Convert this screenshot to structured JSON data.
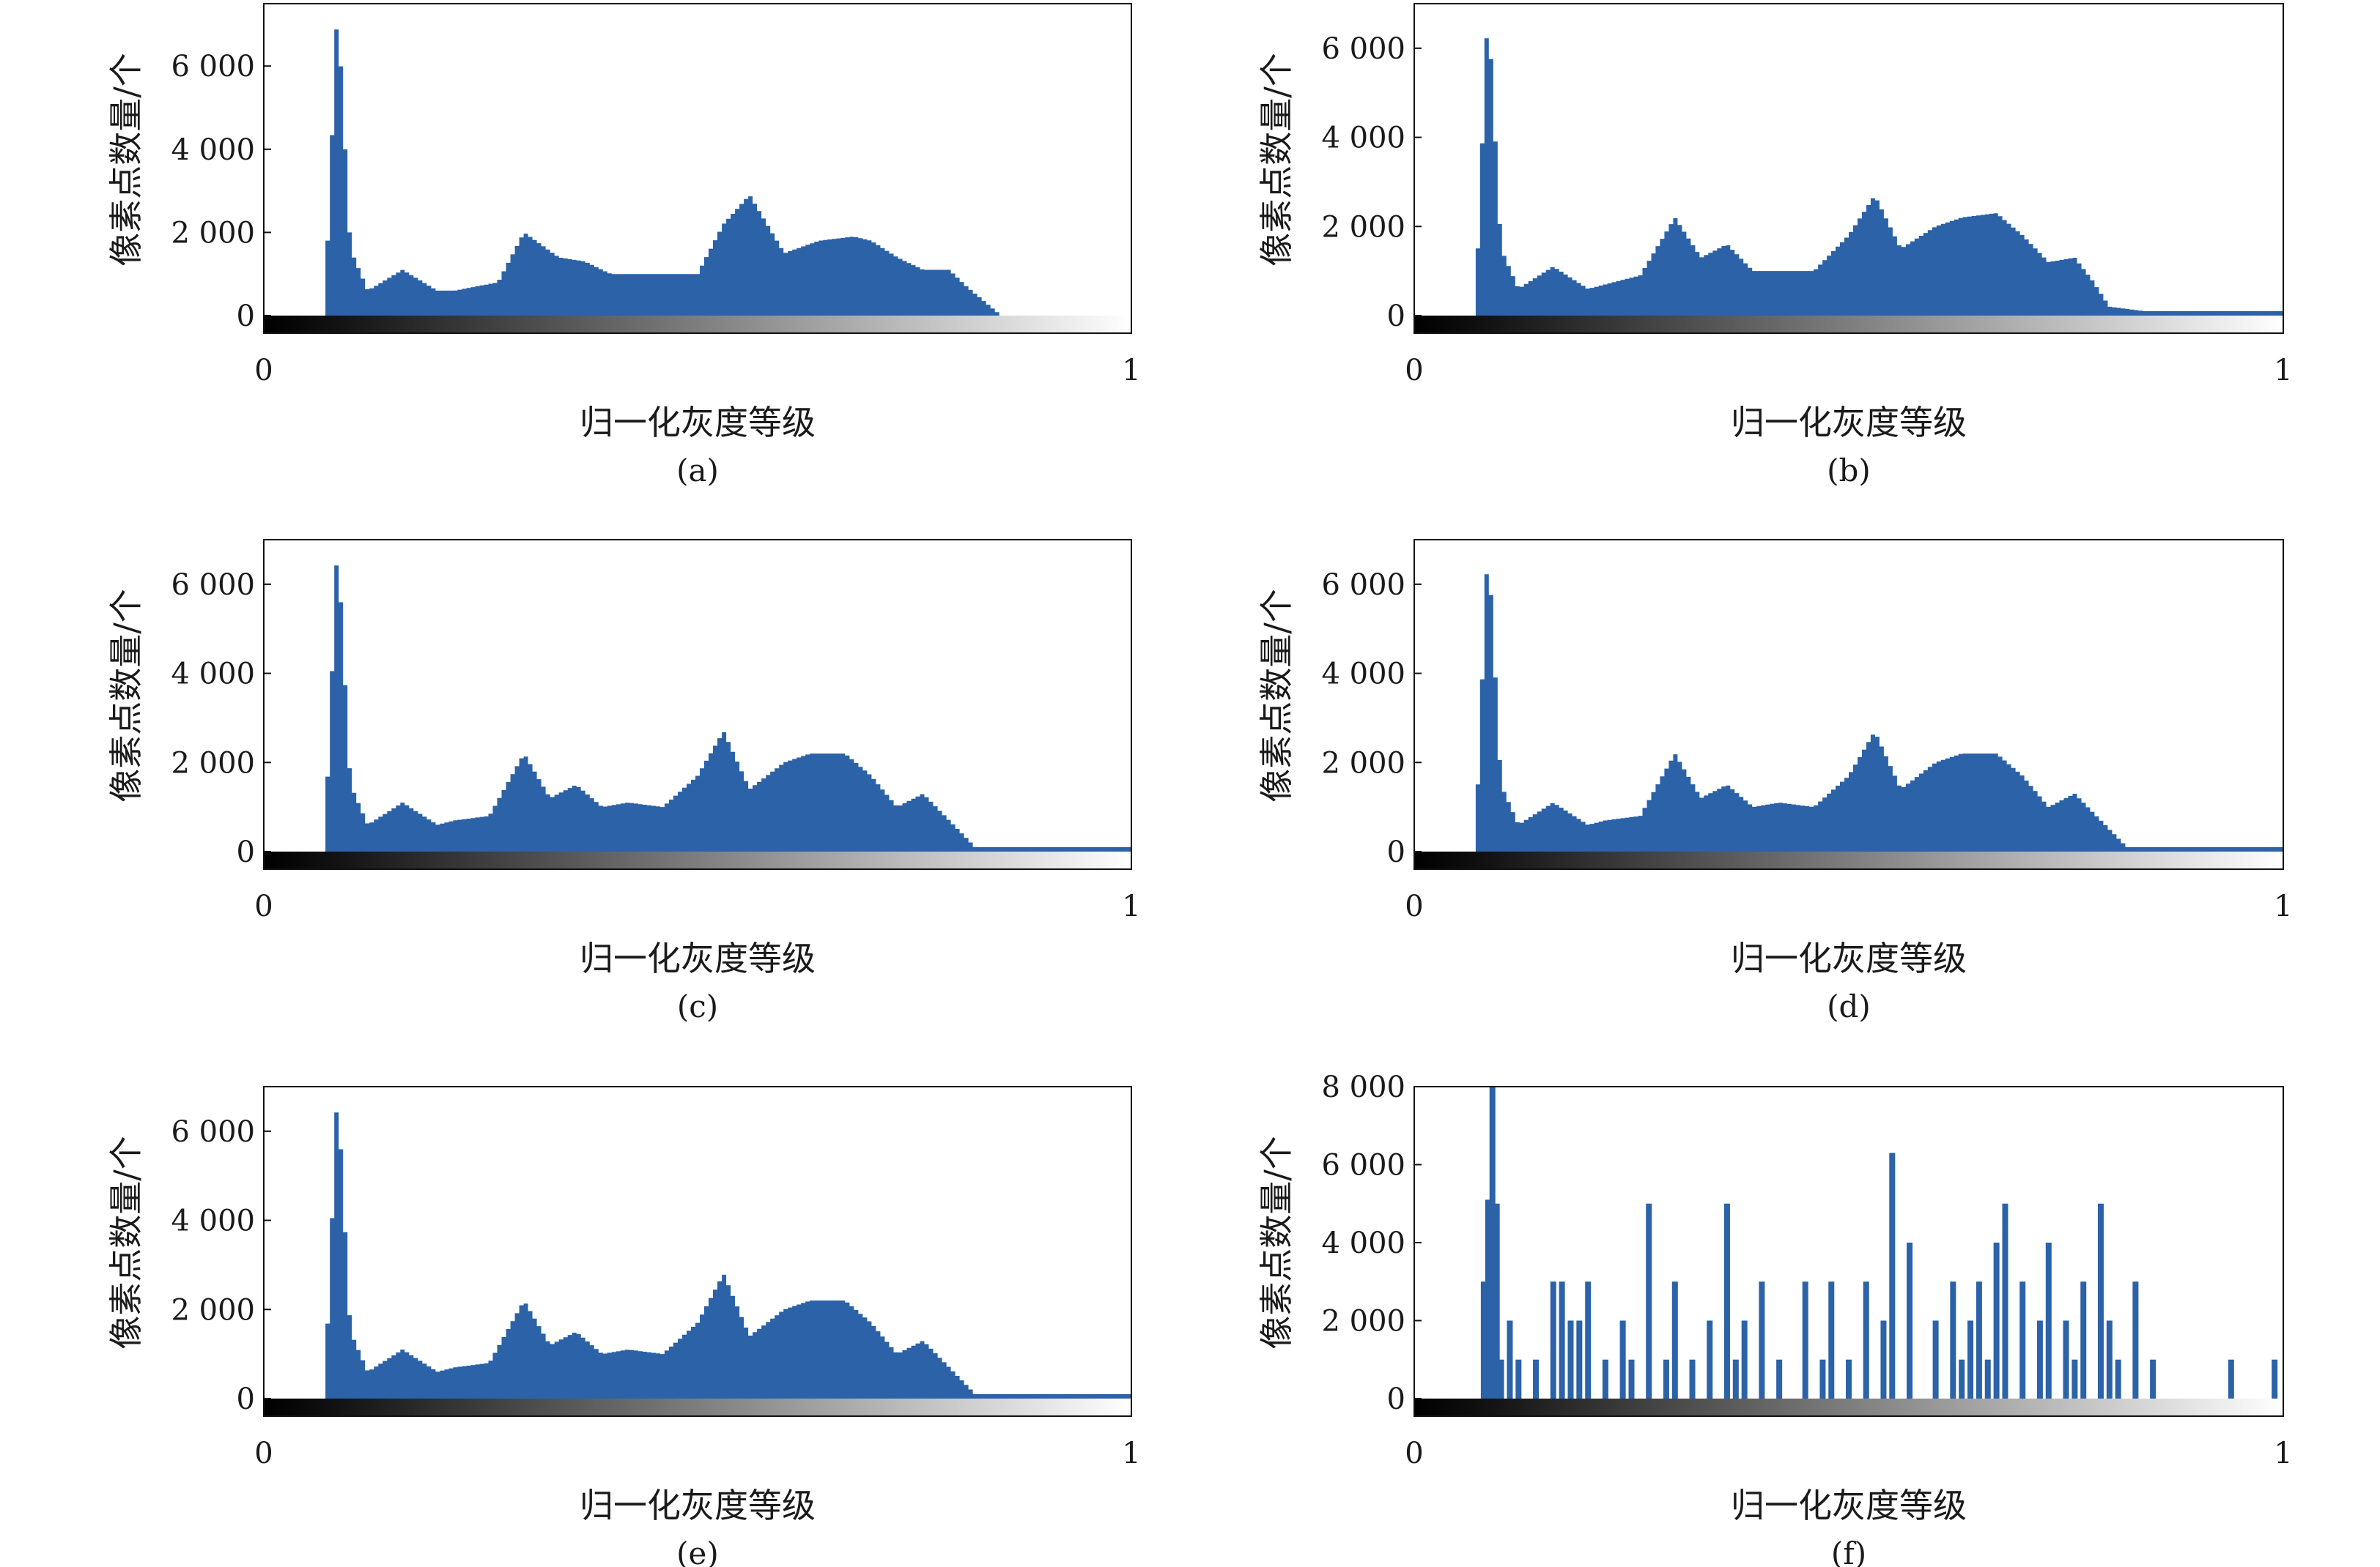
{
  "colors": {
    "bar": "#2b62a8",
    "axis": "#111111",
    "background": "#ffffff"
  },
  "chart_data": [
    {
      "type": "bar",
      "caption": "(a)",
      "xlabel": "归一化灰度等级",
      "ylabel": "像素点数量/个",
      "xlim": [
        0,
        1
      ],
      "ylim": [
        -500,
        7500
      ],
      "xticks": [
        "0",
        "1"
      ],
      "yticks": [
        0,
        2000,
        4000,
        6000
      ],
      "ytick_labels": [
        "0",
        "2 000",
        "4 000",
        "6 000"
      ],
      "colorbar": "grayscale",
      "x": [
        0.07,
        0.085,
        0.1,
        0.12,
        0.16,
        0.2,
        0.22,
        0.27,
        0.3,
        0.34,
        0.37,
        0.4,
        0.45,
        0.5,
        0.53,
        0.56,
        0.6,
        0.64,
        0.68,
        0.7,
        0.73,
        0.76,
        0.79,
        0.81,
        0.85,
        0.9,
        1.0
      ],
      "y": [
        0,
        7500,
        1600,
        600,
        1100,
        600,
        600,
        800,
        2000,
        1400,
        1300,
        1000,
        1000,
        1000,
        2200,
        2900,
        1500,
        1800,
        1900,
        1800,
        1400,
        1100,
        1100,
        700,
        0,
        0,
        0
      ]
    },
    {
      "type": "bar",
      "caption": "(b)",
      "xlabel": "归一化灰度等级",
      "ylabel": "像素点数量/个",
      "xlim": [
        0,
        1
      ],
      "ylim": [
        -500,
        7000
      ],
      "xticks": [
        "0",
        "1"
      ],
      "yticks": [
        0,
        2000,
        4000,
        6000
      ],
      "ytick_labels": [
        "0",
        "2 000",
        "4 000",
        "6 000"
      ],
      "colorbar": "grayscale",
      "x": [
        0.07,
        0.085,
        0.1,
        0.12,
        0.16,
        0.2,
        0.22,
        0.26,
        0.3,
        0.33,
        0.36,
        0.39,
        0.42,
        0.46,
        0.5,
        0.53,
        0.56,
        0.6,
        0.63,
        0.67,
        0.7,
        0.73,
        0.76,
        0.78,
        0.8,
        0.84,
        0.88,
        1.0
      ],
      "y": [
        0,
        7000,
        1500,
        600,
        1100,
        600,
        700,
        900,
        2200,
        1300,
        1600,
        1000,
        1000,
        1000,
        1800,
        2700,
        1500,
        2000,
        2200,
        2300,
        1800,
        1200,
        1300,
        800,
        200,
        100,
        100,
        100
      ]
    },
    {
      "type": "bar",
      "caption": "(c)",
      "xlabel": "归一化灰度等级",
      "ylabel": "像素点数量/个",
      "xlim": [
        0,
        1
      ],
      "ylim": [
        -500,
        7000
      ],
      "xticks": [
        "0",
        "1"
      ],
      "yticks": [
        0,
        2000,
        4000,
        6000
      ],
      "ytick_labels": [
        "0",
        "2 000",
        "4 000",
        "6 000"
      ],
      "colorbar": "grayscale",
      "x": [
        0.07,
        0.085,
        0.1,
        0.12,
        0.16,
        0.2,
        0.22,
        0.26,
        0.3,
        0.33,
        0.36,
        0.39,
        0.42,
        0.46,
        0.5,
        0.53,
        0.56,
        0.6,
        0.63,
        0.67,
        0.7,
        0.73,
        0.76,
        0.79,
        0.82,
        0.86,
        0.9,
        1.0
      ],
      "y": [
        0,
        7000,
        1500,
        600,
        1100,
        600,
        700,
        800,
        2200,
        1200,
        1500,
        1000,
        1100,
        1000,
        1700,
        2700,
        1400,
        2000,
        2200,
        2200,
        1700,
        1000,
        1300,
        700,
        100,
        100,
        100,
        100
      ]
    },
    {
      "type": "bar",
      "caption": "(d)",
      "xlabel": "归一化灰度等级",
      "ylabel": "像素点数量/个",
      "xlim": [
        0,
        1
      ],
      "ylim": [
        -500,
        7000
      ],
      "xticks": [
        "0",
        "1"
      ],
      "yticks": [
        0,
        2000,
        4000,
        6000
      ],
      "ytick_labels": [
        "0",
        "2 000",
        "4 000",
        "6 000"
      ],
      "colorbar": "grayscale",
      "x": [
        0.07,
        0.085,
        0.1,
        0.12,
        0.16,
        0.2,
        0.22,
        0.26,
        0.3,
        0.33,
        0.36,
        0.39,
        0.42,
        0.46,
        0.5,
        0.53,
        0.56,
        0.6,
        0.63,
        0.67,
        0.7,
        0.73,
        0.76,
        0.79,
        0.82,
        0.86,
        0.9,
        1.0
      ],
      "y": [
        0,
        7000,
        1500,
        600,
        1100,
        600,
        700,
        800,
        2200,
        1200,
        1500,
        1000,
        1100,
        1000,
        1700,
        2700,
        1400,
        2000,
        2200,
        2200,
        1700,
        1000,
        1300,
        700,
        100,
        100,
        100,
        100
      ]
    },
    {
      "type": "bar",
      "caption": "(e)",
      "xlabel": "归一化灰度等级",
      "ylabel": "像素点数量/个",
      "xlim": [
        0,
        1
      ],
      "ylim": [
        -500,
        7000
      ],
      "xticks": [
        "0",
        "1"
      ],
      "yticks": [
        0,
        2000,
        4000,
        6000
      ],
      "ytick_labels": [
        "0",
        "2 000",
        "4 000",
        "6 000"
      ],
      "colorbar": "grayscale",
      "x": [
        0.07,
        0.085,
        0.1,
        0.12,
        0.16,
        0.2,
        0.22,
        0.26,
        0.3,
        0.33,
        0.36,
        0.39,
        0.42,
        0.46,
        0.5,
        0.53,
        0.56,
        0.6,
        0.63,
        0.67,
        0.7,
        0.73,
        0.76,
        0.79,
        0.82,
        0.86,
        0.9,
        1.0
      ],
      "y": [
        0,
        7000,
        1500,
        600,
        1100,
        600,
        700,
        800,
        2200,
        1200,
        1500,
        1000,
        1100,
        1000,
        1700,
        2800,
        1400,
        2000,
        2200,
        2200,
        1700,
        1000,
        1300,
        700,
        100,
        100,
        100,
        100
      ]
    },
    {
      "type": "bar",
      "caption": "(f)",
      "xlabel": "归一化灰度等级",
      "ylabel": "像素点数量/个",
      "xlim": [
        0,
        1
      ],
      "ylim": [
        -500,
        8000
      ],
      "xticks": [
        "0",
        "1"
      ],
      "yticks": [
        0,
        2000,
        4000,
        6000,
        8000
      ],
      "ytick_labels": [
        "0",
        "2 000",
        "4 000",
        "6 000",
        "8 000"
      ],
      "colorbar": "grayscale",
      "x": [
        0.08,
        0.085,
        0.09,
        0.095,
        0.1,
        0.11,
        0.12,
        0.14,
        0.16,
        0.17,
        0.18,
        0.19,
        0.2,
        0.22,
        0.24,
        0.25,
        0.27,
        0.29,
        0.3,
        0.32,
        0.34,
        0.36,
        0.37,
        0.38,
        0.4,
        0.42,
        0.45,
        0.47,
        0.48,
        0.5,
        0.52,
        0.54,
        0.55,
        0.57,
        0.6,
        0.62,
        0.63,
        0.64,
        0.65,
        0.66,
        0.67,
        0.68,
        0.7,
        0.72,
        0.73,
        0.75,
        0.76,
        0.77,
        0.79,
        0.8,
        0.81,
        0.83,
        0.85,
        0.94,
        0.99
      ],
      "y": [
        3000,
        5100,
        8000,
        5000,
        1000,
        2000,
        1000,
        1000,
        3000,
        3000,
        2000,
        2000,
        3000,
        1000,
        2000,
        1000,
        5000,
        1000,
        3000,
        1000,
        2000,
        5000,
        1000,
        2000,
        3000,
        1000,
        3000,
        1000,
        3000,
        1000,
        3000,
        2000,
        6300,
        4000,
        2000,
        3000,
        1000,
        2000,
        3000,
        1000,
        4000,
        5000,
        3000,
        2000,
        4000,
        2000,
        1000,
        3000,
        5000,
        2000,
        1000,
        3000,
        1000,
        1000,
        1000
      ]
    }
  ]
}
